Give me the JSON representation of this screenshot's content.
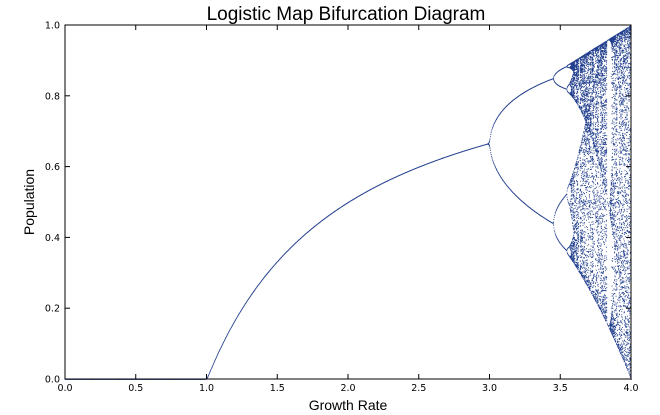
{
  "chart_data": {
    "type": "scatter",
    "title": "Logistic Map Bifurcation Diagram",
    "xlabel": "Growth Rate",
    "ylabel": "Population",
    "xlim": [
      0.0,
      4.0
    ],
    "ylim": [
      0.0,
      1.0
    ],
    "x_ticks": [
      0.0,
      0.5,
      1.0,
      1.5,
      2.0,
      2.5,
      3.0,
      3.5,
      4.0
    ],
    "y_ticks": [
      0.0,
      0.2,
      0.4,
      0.6,
      0.8,
      1.0
    ],
    "x_tick_labels": [
      "0.0",
      "0.5",
      "1.0",
      "1.5",
      "2.0",
      "2.5",
      "3.0",
      "3.5",
      "4.0"
    ],
    "y_tick_labels": [
      "0.0",
      "0.2",
      "0.4",
      "0.6",
      "0.8",
      "1.0"
    ],
    "grid": false,
    "legend": "none",
    "point_color": "#1f3d8c",
    "series": [
      {
        "map": "x_next = r * x * (1 - x)",
        "r_range": [
          0.0,
          4.0
        ],
        "r_steps": 1400,
        "x0": 0.5,
        "transient_iterations": 300,
        "plotted_iterations": 60
      }
    ]
  }
}
